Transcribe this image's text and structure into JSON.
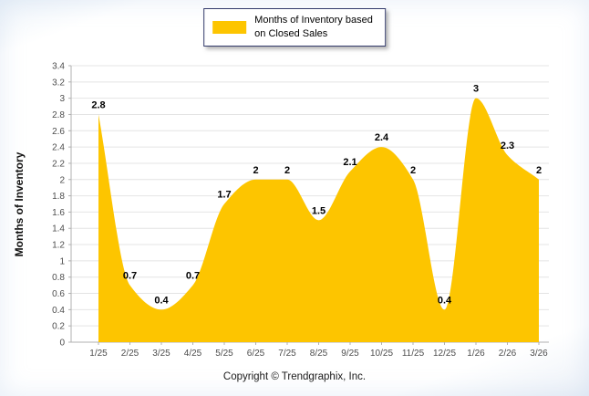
{
  "legend": {
    "label_line1": "Months of Inventory based",
    "label_line2": "on Closed Sales",
    "swatch_color": "#FDC500"
  },
  "footer": {
    "copyright": "Copyright © Trendgraphix, Inc."
  },
  "chart_data": {
    "type": "area",
    "title": "",
    "xlabel": "",
    "ylabel": "Months of Inventory",
    "categories": [
      "1/25",
      "2/25",
      "3/25",
      "4/25",
      "5/25",
      "6/25",
      "7/25",
      "8/25",
      "9/25",
      "10/25",
      "11/25",
      "12/25",
      "1/26",
      "2/26",
      "3/26"
    ],
    "values": [
      2.8,
      0.7,
      0.4,
      0.7,
      1.7,
      2,
      2,
      1.5,
      2.1,
      2.4,
      2,
      0.4,
      3,
      2.3,
      2
    ],
    "point_labels": [
      "2.8",
      "0.7",
      "0.4",
      "0.7",
      "1.7",
      "2",
      "2",
      "1.5",
      "2.1",
      "2.4",
      "2",
      "0.4",
      "3",
      "2.3",
      "2"
    ],
    "ylim": [
      0,
      3.4
    ],
    "ytick_step": 0.2,
    "series_color": "#FDC500",
    "grid": true,
    "legend_position": "top"
  }
}
